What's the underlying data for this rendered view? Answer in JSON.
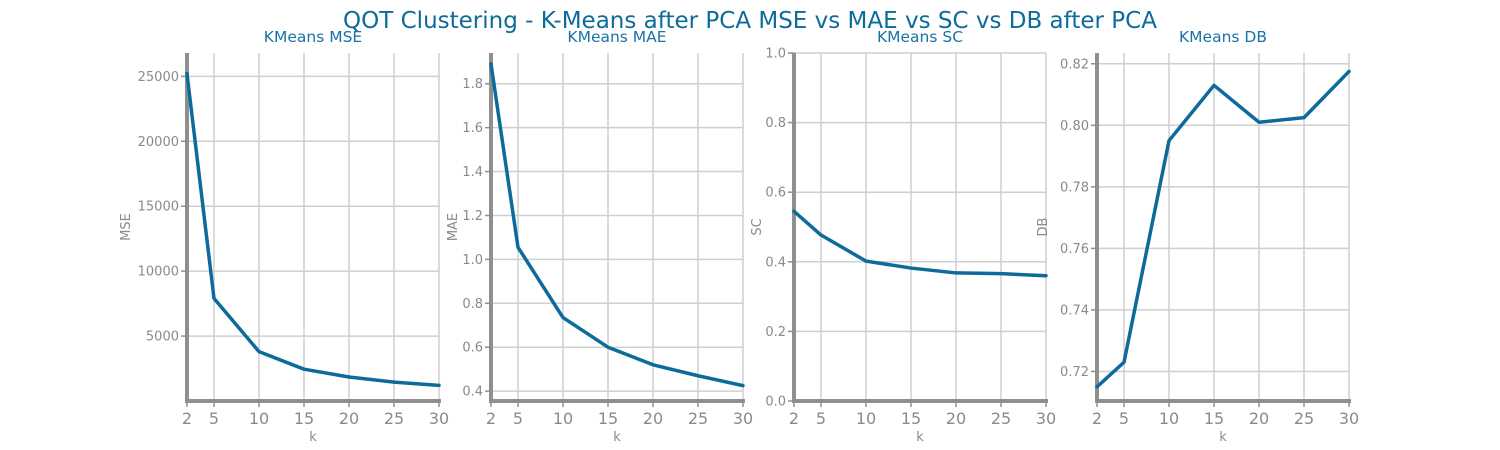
{
  "figure": {
    "title": "QOT Clustering - K-Means after PCA MSE vs MAE vs SC vs DB after PCA"
  },
  "colors": {
    "line": "#0d6b9b",
    "grid": "#cfcfcf",
    "axis": "#8f8f8f",
    "text": "#8a8a8a",
    "title": "#1a73a6"
  },
  "chart_data": [
    {
      "type": "line",
      "title": "KMeans MSE",
      "xlabel": "k",
      "ylabel": "MSE",
      "x": [
        2,
        5,
        10,
        15,
        20,
        25,
        30
      ],
      "values": [
        25200,
        7900,
        3800,
        2450,
        1850,
        1450,
        1200
      ],
      "xlim": [
        2,
        30
      ],
      "ylim": [
        0,
        26800
      ],
      "xticks": [
        2,
        5,
        10,
        15,
        20,
        25,
        30
      ],
      "yticks": [
        5000,
        10000,
        15000,
        20000,
        25000
      ],
      "ytick_labels": [
        "5000",
        "10000",
        "15000",
        "20000",
        "25000"
      ],
      "grid": true
    },
    {
      "type": "line",
      "title": "KMeans MAE",
      "xlabel": "k",
      "ylabel": "MAE",
      "x": [
        2,
        5,
        10,
        15,
        20,
        25,
        30
      ],
      "values": [
        1.89,
        1.055,
        0.735,
        0.6,
        0.52,
        0.47,
        0.425
      ],
      "xlim": [
        2,
        30
      ],
      "ylim": [
        0.355,
        1.94
      ],
      "xticks": [
        2,
        5,
        10,
        15,
        20,
        25,
        30
      ],
      "yticks": [
        0.4,
        0.6,
        0.8,
        1.0,
        1.2,
        1.4,
        1.6,
        1.8
      ],
      "ytick_labels": [
        "0.4",
        "0.6",
        "0.8",
        "1.0",
        "1.2",
        "1.4",
        "1.6",
        "1.8"
      ],
      "grid": true
    },
    {
      "type": "line",
      "title": "KMeans SC",
      "xlabel": "k",
      "ylabel": "SC",
      "x": [
        2,
        5,
        10,
        15,
        20,
        25,
        30
      ],
      "values": [
        0.545,
        0.477,
        0.402,
        0.382,
        0.368,
        0.366,
        0.36
      ],
      "xlim": [
        2,
        30
      ],
      "ylim": [
        0.0,
        1.0
      ],
      "xticks": [
        2,
        5,
        10,
        15,
        20,
        25,
        30
      ],
      "yticks": [
        0.0,
        0.2,
        0.4,
        0.6,
        0.8,
        1.0
      ],
      "ytick_labels": [
        "0.0",
        "0.2",
        "0.4",
        "0.6",
        "0.8",
        "1.0"
      ],
      "grid": true
    },
    {
      "type": "line",
      "title": "KMeans DB",
      "xlabel": "k",
      "ylabel": "DB",
      "x": [
        2,
        5,
        10,
        15,
        20,
        25,
        30
      ],
      "values": [
        0.715,
        0.723,
        0.795,
        0.813,
        0.801,
        0.8025,
        0.8175
      ],
      "xlim": [
        2,
        30
      ],
      "ylim": [
        0.7104,
        0.8235
      ],
      "xticks": [
        2,
        5,
        10,
        15,
        20,
        25,
        30
      ],
      "yticks": [
        0.72,
        0.74,
        0.76,
        0.78,
        0.8,
        0.82
      ],
      "ytick_labels": [
        "0.72",
        "0.74",
        "0.76",
        "0.78",
        "0.80",
        "0.82"
      ],
      "grid": true
    }
  ]
}
